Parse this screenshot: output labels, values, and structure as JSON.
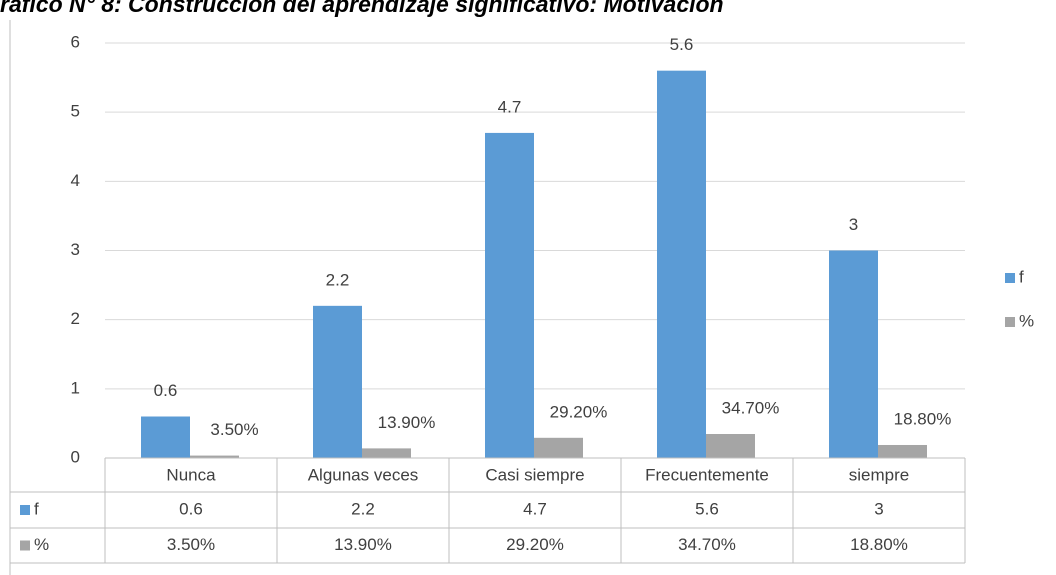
{
  "chart_data": {
    "type": "bar",
    "title": "ráfico N° 8: Construcción del aprendizaje significativo: Motivación",
    "categories": [
      "Nunca",
      "Algunas veces",
      "Casi siempre",
      "Frecuentemente",
      "siempre"
    ],
    "series": [
      {
        "name": "f",
        "color": "#5b9bd5",
        "values": [
          0.6,
          2.2,
          4.7,
          5.6,
          3
        ],
        "value_labels": [
          "0.6",
          "2.2",
          "4.7",
          "5.6",
          "3"
        ]
      },
      {
        "name": "%",
        "color": "#a5a5a5",
        "values": [
          0.035,
          0.139,
          0.292,
          0.347,
          0.188
        ],
        "value_labels": [
          "3.50%",
          "13.90%",
          "29.20%",
          "34.70%",
          "18.80%"
        ]
      }
    ],
    "ylim": [
      0,
      6
    ],
    "yticks": [
      0,
      1,
      2,
      3,
      4,
      5,
      6
    ],
    "grid": true,
    "legend": "right",
    "data_table": true
  }
}
